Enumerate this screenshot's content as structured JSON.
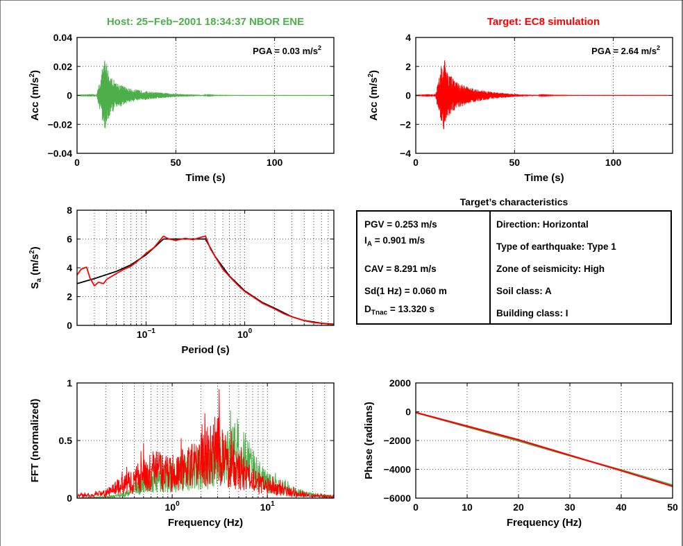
{
  "panels": {
    "host_title": "Host: 25−Feb−2001 18:34:37 NBOR ENE",
    "target_title": "Target: EC8 simulation",
    "host_pga": "PGA = 0.03 m/s",
    "target_pga": "PGA = 2.64 m/s",
    "pga_exp": "2",
    "info_title": "Target’s characteristics",
    "info_left": [
      {
        "text": "PGV = 0.253 m/s"
      },
      {
        "main": "I",
        "sub": "A",
        "rest": " = 0.901 m/s"
      },
      {
        "text": "CAV = 8.291 m/s"
      },
      {
        "text": "Sd(1 Hz) = 0.060 m"
      },
      {
        "main": "D",
        "sub": "Tnac",
        "rest": " = 13.320 s"
      }
    ],
    "info_right": [
      "Direction: Horizontal",
      "Type of earthquake: Type 1",
      "Zone of seismicity: High",
      "Soil class: A",
      "Building class: I"
    ]
  },
  "colors": {
    "host": "#4daf4a",
    "target": "#ff0000",
    "fit": "#000000"
  },
  "chart_data": [
    {
      "id": "host_acc",
      "type": "line",
      "xlabel": "Time (s)",
      "ylabel": "Acc (m/s",
      "ylabel_exp": "2",
      "ylabel_end": ")",
      "xlim": [
        0,
        130
      ],
      "ylim": [
        -0.04,
        0.04
      ],
      "xticks": [
        0,
        50,
        100
      ],
      "xtick_labels": [
        "0",
        "50",
        "100"
      ],
      "yticks": [
        -0.04,
        -0.02,
        0,
        0.02,
        0.04
      ],
      "ytick_labels": [
        "−0.04",
        "−0.02",
        "0",
        "0.02",
        "0.04"
      ],
      "grid": true,
      "series": [
        {
          "color": "host",
          "envelope_t": [
            0,
            10,
            11,
            12,
            13,
            14,
            15,
            16,
            18,
            20,
            23,
            26,
            30,
            35,
            40,
            45,
            50,
            55,
            60,
            65,
            70,
            80,
            130
          ],
          "envelope_a": [
            0.0001,
            0.0003,
            0.008,
            0.012,
            0.02,
            0.026,
            0.022,
            0.016,
            0.012,
            0.009,
            0.007,
            0.005,
            0.004,
            0.003,
            0.0022,
            0.0017,
            0.0012,
            0.0008,
            0.0006,
            0.0003,
            0.0001,
            5e-05,
            5e-05
          ]
        }
      ]
    },
    {
      "id": "target_acc",
      "type": "line",
      "xlabel": "Time (s)",
      "ylabel": "Acc (m/s",
      "ylabel_exp": "2",
      "ylabel_end": ")",
      "xlim": [
        0,
        130
      ],
      "ylim": [
        -4,
        4
      ],
      "xticks": [
        0,
        50,
        100
      ],
      "xtick_labels": [
        "0",
        "50",
        "100"
      ],
      "yticks": [
        -4,
        -2,
        0,
        2,
        4
      ],
      "ytick_labels": [
        "−4",
        "−2",
        "0",
        "2",
        "4"
      ],
      "grid": true,
      "series": [
        {
          "color": "target",
          "envelope_t": [
            0,
            10,
            11,
            12,
            13,
            14,
            15,
            16,
            18,
            20,
            23,
            26,
            30,
            35,
            40,
            45,
            50,
            55,
            60,
            65,
            70,
            80,
            130
          ],
          "envelope_a": [
            0.01,
            0.03,
            0.8,
            1.3,
            2.1,
            2.64,
            2.3,
            1.7,
            1.3,
            1.0,
            0.8,
            0.6,
            0.45,
            0.32,
            0.22,
            0.16,
            0.1,
            0.06,
            0.04,
            0.02,
            0.01,
            0.005,
            0.005
          ]
        }
      ]
    },
    {
      "id": "spectrum",
      "type": "line",
      "xscale": "log",
      "xlabel": "Period (s)",
      "ylabel": "S",
      "ylabel_sub": "a",
      "ylabel_mid": " (m/s",
      "ylabel_exp": "2",
      "ylabel_end": ")",
      "xlim": [
        0.02,
        8
      ],
      "ylim": [
        0,
        8
      ],
      "xticks": [
        0.1,
        1
      ],
      "xtick_base": "10",
      "xtick_exps": [
        "−1",
        "0"
      ],
      "yticks": [
        0,
        2,
        4,
        6,
        8
      ],
      "ytick_labels": [
        "0",
        "2",
        "4",
        "6",
        "8"
      ],
      "grid": true,
      "series": [
        {
          "color": "fit",
          "x": [
            0.02,
            0.03,
            0.05,
            0.07,
            0.1,
            0.13,
            0.15,
            0.2,
            0.3,
            0.4,
            0.5,
            0.7,
            1.0,
            1.5,
            2.0,
            3.0,
            4.0,
            6.0,
            8.0
          ],
          "y": [
            2.9,
            3.25,
            3.75,
            4.2,
            4.9,
            5.6,
            6.0,
            6.0,
            6.0,
            6.0,
            4.8,
            3.43,
            2.4,
            1.6,
            1.2,
            0.6,
            0.34,
            0.15,
            0.08
          ]
        },
        {
          "color": "target",
          "x": [
            0.02,
            0.022,
            0.025,
            0.027,
            0.03,
            0.033,
            0.037,
            0.04,
            0.05,
            0.06,
            0.07,
            0.08,
            0.1,
            0.12,
            0.15,
            0.17,
            0.2,
            0.25,
            0.3,
            0.35,
            0.4,
            0.45,
            0.5,
            0.6,
            0.7,
            0.85,
            1.0,
            1.2,
            1.5,
            2.0,
            2.5,
            3.0,
            4.0,
            5.0,
            6.0,
            8.0
          ],
          "y": [
            3.5,
            3.9,
            4.05,
            3.3,
            2.75,
            3.0,
            2.9,
            3.2,
            3.6,
            3.9,
            4.1,
            4.4,
            5.0,
            5.4,
            6.2,
            6.0,
            5.9,
            6.05,
            5.95,
            6.1,
            6.2,
            5.3,
            4.8,
            3.9,
            3.4,
            2.8,
            2.35,
            2.0,
            1.55,
            1.15,
            0.8,
            0.6,
            0.33,
            0.2,
            0.14,
            0.06
          ]
        }
      ]
    },
    {
      "id": "fft",
      "type": "line",
      "xscale": "log",
      "xlabel": "Frequency (Hz)",
      "ylabel": "FFT (normalized)",
      "xlim": [
        0.1,
        50
      ],
      "ylim": [
        0,
        1
      ],
      "xticks": [
        1,
        10
      ],
      "xtick_base": "10",
      "xtick_exps": [
        "0",
        "1"
      ],
      "yticks": [
        0,
        0.5,
        1
      ],
      "ytick_labels": [
        "0",
        "0.5",
        "1"
      ],
      "grid": true,
      "series": [
        {
          "color": "host",
          "env_f": [
            0.1,
            0.2,
            0.3,
            0.4,
            0.5,
            0.7,
            1.0,
            1.5,
            2.0,
            3.0,
            4.0,
            5.0,
            6.0,
            8.0,
            10,
            15,
            20,
            30,
            50
          ],
          "env_v": [
            0.0,
            0.02,
            0.06,
            0.18,
            0.3,
            0.38,
            0.42,
            0.52,
            0.6,
            0.7,
            0.8,
            1.0,
            0.75,
            0.45,
            0.3,
            0.18,
            0.12,
            0.06,
            0.03
          ]
        },
        {
          "color": "target",
          "env_f": [
            0.1,
            0.15,
            0.2,
            0.25,
            0.3,
            0.4,
            0.5,
            0.7,
            1.0,
            1.5,
            2.0,
            3.0,
            4.0,
            5.0,
            6.0,
            8.0,
            10,
            15,
            20,
            30,
            50
          ],
          "env_v": [
            0.05,
            0.06,
            0.1,
            0.2,
            0.25,
            0.35,
            0.5,
            0.55,
            0.5,
            0.6,
            0.75,
            1.0,
            0.65,
            0.55,
            0.45,
            0.3,
            0.25,
            0.15,
            0.1,
            0.05,
            0.03
          ]
        }
      ]
    },
    {
      "id": "phase",
      "type": "line",
      "xlabel": "Frequency (Hz)",
      "ylabel": "Phase (radians)",
      "xlim": [
        0,
        50
      ],
      "ylim": [
        -6000,
        2000
      ],
      "xticks": [
        0,
        10,
        20,
        30,
        40,
        50
      ],
      "xtick_labels": [
        "0",
        "10",
        "20",
        "30",
        "40",
        "50"
      ],
      "yticks": [
        -6000,
        -4000,
        -2000,
        0,
        2000
      ],
      "ytick_labels": [
        "−6000",
        "−4000",
        "−2000",
        "0",
        "2000"
      ],
      "grid": true,
      "series": [
        {
          "color": "host",
          "x": [
            0,
            10,
            20,
            30,
            40,
            50
          ],
          "y": [
            -60,
            -1050,
            -2030,
            -3060,
            -4040,
            -5100
          ]
        },
        {
          "color": "target",
          "x": [
            0,
            10,
            20,
            30,
            40,
            50
          ],
          "y": [
            -50,
            -1000,
            -1950,
            -3020,
            -4090,
            -5180
          ]
        }
      ]
    }
  ]
}
